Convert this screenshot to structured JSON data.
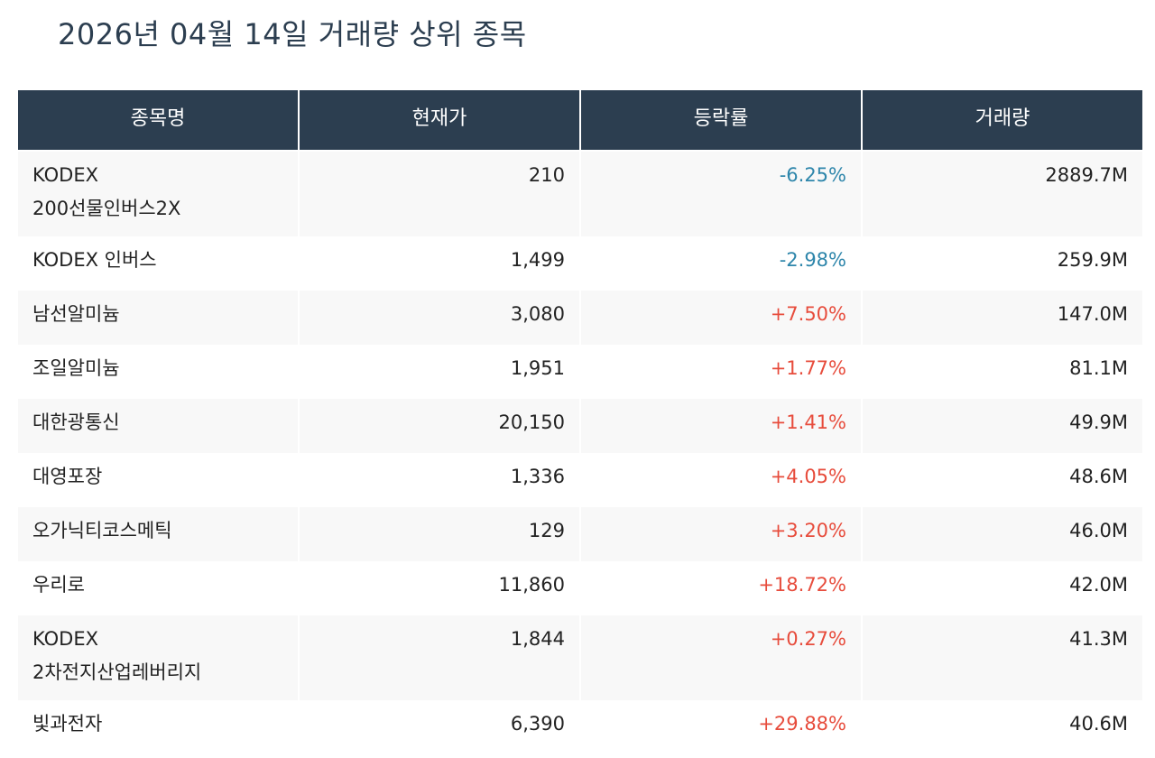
{
  "title": "2026년 04월 14일 거래량 상위 종목",
  "columns": [
    "종목명",
    "현재가",
    "등락률",
    "거래량"
  ],
  "rows": [
    {
      "name": "KODEX\n200선물인버스2X",
      "price": "210",
      "change": "-6.25%",
      "direction": "down",
      "volume": "2889.7M"
    },
    {
      "name": "KODEX 인버스",
      "price": "1,499",
      "change": "-2.98%",
      "direction": "down",
      "volume": "259.9M"
    },
    {
      "name": "남선알미늄",
      "price": "3,080",
      "change": "+7.50%",
      "direction": "up",
      "volume": "147.0M"
    },
    {
      "name": "조일알미늄",
      "price": "1,951",
      "change": "+1.77%",
      "direction": "up",
      "volume": "81.1M"
    },
    {
      "name": "대한광통신",
      "price": "20,150",
      "change": "+1.41%",
      "direction": "up",
      "volume": "49.9M"
    },
    {
      "name": "대영포장",
      "price": "1,336",
      "change": "+4.05%",
      "direction": "up",
      "volume": "48.6M"
    },
    {
      "name": "오가닉티코스메틱",
      "price": "129",
      "change": "+3.20%",
      "direction": "up",
      "volume": "46.0M"
    },
    {
      "name": "우리로",
      "price": "11,860",
      "change": "+18.72%",
      "direction": "up",
      "volume": "42.0M"
    },
    {
      "name": "KODEX\n2차전지산업레버리지",
      "price": "1,844",
      "change": "+0.27%",
      "direction": "up",
      "volume": "41.3M"
    },
    {
      "name": "빛과전자",
      "price": "6,390",
      "change": "+29.88%",
      "direction": "up",
      "volume": "40.6M"
    }
  ],
  "colors": {
    "header_bg": "#2c3e50",
    "up": "#e74c3c",
    "down": "#2e86ab",
    "stripe": "#f8f8f8"
  }
}
